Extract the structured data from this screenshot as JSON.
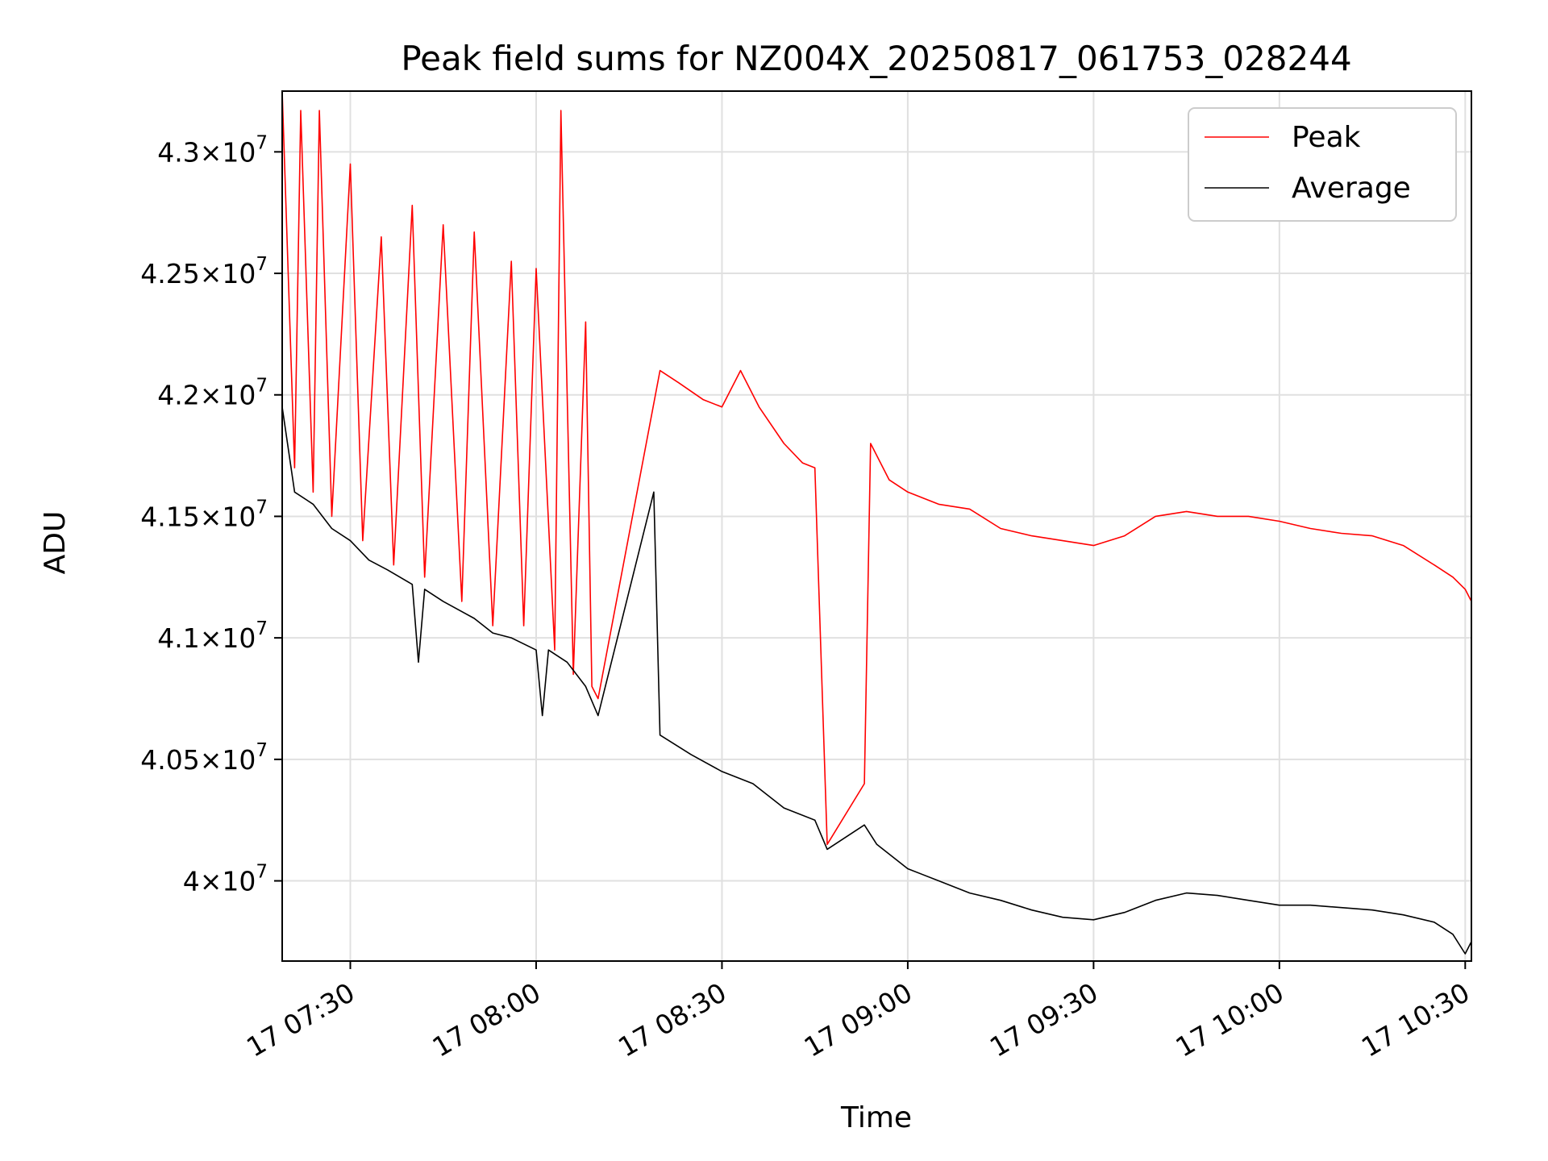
{
  "chart_data": {
    "type": "line",
    "title": "Peak field sums for NZ004X_20250817_061753_028244",
    "xlabel": "Time",
    "ylabel": "ADU",
    "x_range": [
      "17 07:19",
      "17 10:31"
    ],
    "ylim": [
      39670000,
      43250000
    ],
    "x_ticks": [
      {
        "label": "17 07:30",
        "minutes": 30
      },
      {
        "label": "17 08:00",
        "minutes": 60
      },
      {
        "label": "17 08:30",
        "minutes": 90
      },
      {
        "label": "17 09:00",
        "minutes": 120
      },
      {
        "label": "17 09:30",
        "minutes": 150
      },
      {
        "label": "17 10:00",
        "minutes": 180
      },
      {
        "label": "17 10:30",
        "minutes": 210
      }
    ],
    "y_ticks": [
      {
        "mantissa": "4",
        "exponent": "7",
        "value": 40000000
      },
      {
        "mantissa": "4.05",
        "exponent": "7",
        "value": 40500000
      },
      {
        "mantissa": "4.1",
        "exponent": "7",
        "value": 41000000
      },
      {
        "mantissa": "4.15",
        "exponent": "7",
        "value": 41500000
      },
      {
        "mantissa": "4.2",
        "exponent": "7",
        "value": 42000000
      },
      {
        "mantissa": "4.25",
        "exponent": "7",
        "value": 42500000
      },
      {
        "mantissa": "4.3",
        "exponent": "7",
        "value": 43000000
      }
    ],
    "grid": true,
    "legend_position": "top-right",
    "series": [
      {
        "name": "Peak",
        "color": "#ff0000",
        "points": [
          [
            "17 07:19",
            43250000
          ],
          [
            "17 07:21",
            41700000
          ],
          [
            "17 07:22",
            43170000
          ],
          [
            "17 07:24",
            41600000
          ],
          [
            "17 07:25",
            43170000
          ],
          [
            "17 07:27",
            41500000
          ],
          [
            "17 07:30",
            42950000
          ],
          [
            "17 07:32",
            41400000
          ],
          [
            "17 07:35",
            42650000
          ],
          [
            "17 07:37",
            41300000
          ],
          [
            "17 07:40",
            42780000
          ],
          [
            "17 07:42",
            41250000
          ],
          [
            "17 07:45",
            42700000
          ],
          [
            "17 07:48",
            41150000
          ],
          [
            "17 07:50",
            42670000
          ],
          [
            "17 07:53",
            41050000
          ],
          [
            "17 07:56",
            42550000
          ],
          [
            "17 07:58",
            41050000
          ],
          [
            "17 08:00",
            42520000
          ],
          [
            "17 08:03",
            40950000
          ],
          [
            "17 08:04",
            43170000
          ],
          [
            "17 08:06",
            40850000
          ],
          [
            "17 08:08",
            42300000
          ],
          [
            "17 08:09",
            40800000
          ],
          [
            "17 08:10",
            40750000
          ],
          [
            "17 08:20",
            42100000
          ],
          [
            "17 08:23",
            42050000
          ],
          [
            "17 08:27",
            41980000
          ],
          [
            "17 08:30",
            41950000
          ],
          [
            "17 08:33",
            42100000
          ],
          [
            "17 08:36",
            41950000
          ],
          [
            "17 08:40",
            41800000
          ],
          [
            "17 08:43",
            41720000
          ],
          [
            "17 08:45",
            41700000
          ],
          [
            "17 08:47",
            40150000
          ],
          [
            "17 08:53",
            40400000
          ],
          [
            "17 08:54",
            41800000
          ],
          [
            "17 08:57",
            41650000
          ],
          [
            "17 09:00",
            41600000
          ],
          [
            "17 09:05",
            41550000
          ],
          [
            "17 09:10",
            41530000
          ],
          [
            "17 09:15",
            41450000
          ],
          [
            "17 09:20",
            41420000
          ],
          [
            "17 09:25",
            41400000
          ],
          [
            "17 09:30",
            41380000
          ],
          [
            "17 09:35",
            41420000
          ],
          [
            "17 09:40",
            41500000
          ],
          [
            "17 09:45",
            41520000
          ],
          [
            "17 09:50",
            41500000
          ],
          [
            "17 09:55",
            41500000
          ],
          [
            "17 10:00",
            41480000
          ],
          [
            "17 10:05",
            41450000
          ],
          [
            "17 10:10",
            41430000
          ],
          [
            "17 10:15",
            41420000
          ],
          [
            "17 10:20",
            41380000
          ],
          [
            "17 10:25",
            41300000
          ],
          [
            "17 10:28",
            41250000
          ],
          [
            "17 10:30",
            41200000
          ],
          [
            "17 10:31",
            41150000
          ]
        ]
      },
      {
        "name": "Average",
        "color": "#000000",
        "points": [
          [
            "17 07:19",
            41950000
          ],
          [
            "17 07:21",
            41600000
          ],
          [
            "17 07:24",
            41550000
          ],
          [
            "17 07:27",
            41450000
          ],
          [
            "17 07:30",
            41400000
          ],
          [
            "17 07:33",
            41320000
          ],
          [
            "17 07:36",
            41280000
          ],
          [
            "17 07:40",
            41220000
          ],
          [
            "17 07:41",
            40900000
          ],
          [
            "17 07:42",
            41200000
          ],
          [
            "17 07:45",
            41150000
          ],
          [
            "17 07:50",
            41080000
          ],
          [
            "17 07:53",
            41020000
          ],
          [
            "17 07:56",
            41000000
          ],
          [
            "17 08:00",
            40950000
          ],
          [
            "17 08:01",
            40680000
          ],
          [
            "17 08:02",
            40950000
          ],
          [
            "17 08:05",
            40900000
          ],
          [
            "17 08:08",
            40800000
          ],
          [
            "17 08:10",
            40680000
          ],
          [
            "17 08:19",
            41600000
          ],
          [
            "17 08:20",
            40600000
          ],
          [
            "17 08:25",
            40520000
          ],
          [
            "17 08:30",
            40450000
          ],
          [
            "17 08:35",
            40400000
          ],
          [
            "17 08:40",
            40300000
          ],
          [
            "17 08:45",
            40250000
          ],
          [
            "17 08:47",
            40130000
          ],
          [
            "17 08:53",
            40230000
          ],
          [
            "17 08:55",
            40150000
          ],
          [
            "17 09:00",
            40050000
          ],
          [
            "17 09:05",
            40000000
          ],
          [
            "17 09:10",
            39950000
          ],
          [
            "17 09:15",
            39920000
          ],
          [
            "17 09:20",
            39880000
          ],
          [
            "17 09:25",
            39850000
          ],
          [
            "17 09:30",
            39840000
          ],
          [
            "17 09:35",
            39870000
          ],
          [
            "17 09:40",
            39920000
          ],
          [
            "17 09:45",
            39950000
          ],
          [
            "17 09:50",
            39940000
          ],
          [
            "17 09:55",
            39920000
          ],
          [
            "17 10:00",
            39900000
          ],
          [
            "17 10:05",
            39900000
          ],
          [
            "17 10:10",
            39890000
          ],
          [
            "17 10:15",
            39880000
          ],
          [
            "17 10:20",
            39860000
          ],
          [
            "17 10:25",
            39830000
          ],
          [
            "17 10:28",
            39780000
          ],
          [
            "17 10:30",
            39700000
          ],
          [
            "17 10:31",
            39750000
          ]
        ]
      }
    ]
  }
}
